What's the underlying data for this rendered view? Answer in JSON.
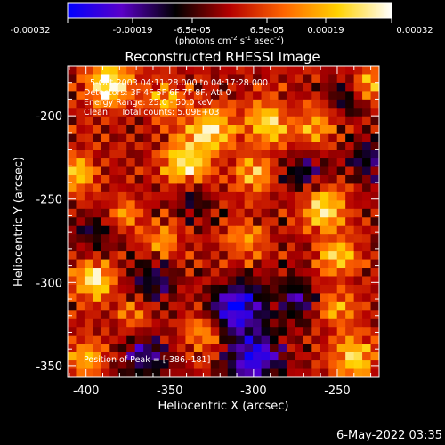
{
  "colorbar": {
    "ticks": [
      "-0.00032",
      "-0.00019",
      "-6.5e-05",
      "6.5e-05",
      "0.00019",
      "0.00032"
    ],
    "units_main": "(photons cm",
    "units_exp1": "-2",
    "units_mid": " s",
    "units_exp2": "-1",
    "units_end": " asec",
    "units_exp3": "-2",
    "units_close": ")",
    "range": [
      -0.00032,
      0.00032
    ],
    "colors": [
      "#0000ff",
      "#5a00c8",
      "#000000",
      "#b40000",
      "#ff6400",
      "#ffd200",
      "#ffffff"
    ]
  },
  "plot_timestamp": "6-May-2022 03:35",
  "annotations": {
    "line1": "5-Oct-2003 04:11:28.000 to 04:17:28.000",
    "line2": "Detectors: 3F 4F 5F 6F 7F 8F, Att 0",
    "line3": "Energy Range: 25.0 - 50.0 keV",
    "line4": "Clean     Total counts: 5.09E+03",
    "peak": "Position of Peak = [-386,-181]"
  },
  "chart_data": {
    "type": "heatmap",
    "title": "Reconstructed RHESSI Image",
    "xlabel": "Heliocentric X (arcsec)",
    "ylabel": "Heliocentric Y (arcsec)",
    "xlim": [
      -411,
      -225
    ],
    "ylim": [
      -357,
      -170
    ],
    "xticks": [
      -400,
      -350,
      -300,
      -250
    ],
    "yticks": [
      -350,
      -300,
      -250,
      -200
    ],
    "xtick_labels": [
      "-400",
      "-350",
      "-300",
      "-250"
    ],
    "ytick_labels": [
      "-350",
      "-300",
      "-250",
      "-200"
    ],
    "peak_position": [
      -386,
      -181
    ],
    "grid": false,
    "legend": "none",
    "colorscale": "blue-purple-black-red-orange-yellow-white",
    "grid_rows": 37,
    "grid_cols": 37,
    "hotspots": [
      {
        "x": -386,
        "y": -181,
        "amp": 1.0,
        "sigma": 9
      },
      {
        "x": -395,
        "y": -298,
        "amp": 0.9,
        "sigma": 8
      },
      {
        "x": -340,
        "y": -228,
        "amp": 0.85,
        "sigma": 10
      },
      {
        "x": -325,
        "y": -208,
        "amp": 0.8,
        "sigma": 9
      },
      {
        "x": -292,
        "y": -205,
        "amp": 0.75,
        "sigma": 9
      },
      {
        "x": -258,
        "y": -255,
        "amp": 0.8,
        "sigma": 9
      },
      {
        "x": -250,
        "y": -285,
        "amp": 0.7,
        "sigma": 8
      },
      {
        "x": -262,
        "y": -205,
        "amp": 0.6,
        "sigma": 8
      },
      {
        "x": -240,
        "y": -345,
        "amp": 0.75,
        "sigma": 9
      },
      {
        "x": -405,
        "y": -235,
        "amp": 0.65,
        "sigma": 8
      },
      {
        "x": -400,
        "y": -345,
        "amp": 0.6,
        "sigma": 8
      },
      {
        "x": -355,
        "y": -275,
        "amp": 0.5,
        "sigma": 7
      },
      {
        "x": -375,
        "y": -260,
        "amp": 0.45,
        "sigma": 7
      },
      {
        "x": -305,
        "y": -275,
        "amp": 0.5,
        "sigma": 8
      },
      {
        "x": -352,
        "y": -190,
        "amp": 0.55,
        "sigma": 8
      },
      {
        "x": -300,
        "y": -235,
        "amp": 0.6,
        "sigma": 8
      },
      {
        "x": -330,
        "y": -330,
        "amp": 0.45,
        "sigma": 8
      },
      {
        "x": -250,
        "y": -315,
        "amp": 0.55,
        "sigma": 7
      },
      {
        "x": -372,
        "y": -318,
        "amp": 0.4,
        "sigma": 7
      },
      {
        "x": -230,
        "y": -180,
        "amp": 0.55,
        "sigma": 7
      },
      {
        "x": -310,
        "y": -315,
        "amp": -0.95,
        "sigma": 10
      },
      {
        "x": -300,
        "y": -345,
        "amp": -0.9,
        "sigma": 11
      },
      {
        "x": -365,
        "y": -345,
        "amp": -0.6,
        "sigma": 9
      },
      {
        "x": -230,
        "y": -225,
        "amp": -0.55,
        "sigma": 9
      },
      {
        "x": -275,
        "y": -310,
        "amp": -0.55,
        "sigma": 9
      },
      {
        "x": -360,
        "y": -300,
        "amp": -0.5,
        "sigma": 9
      },
      {
        "x": -270,
        "y": -235,
        "amp": -0.45,
        "sigma": 9
      },
      {
        "x": -335,
        "y": -250,
        "amp": -0.4,
        "sigma": 8
      },
      {
        "x": -395,
        "y": -270,
        "amp": -0.35,
        "sigma": 8
      },
      {
        "x": -245,
        "y": -190,
        "amp": -0.35,
        "sigma": 8
      }
    ]
  }
}
